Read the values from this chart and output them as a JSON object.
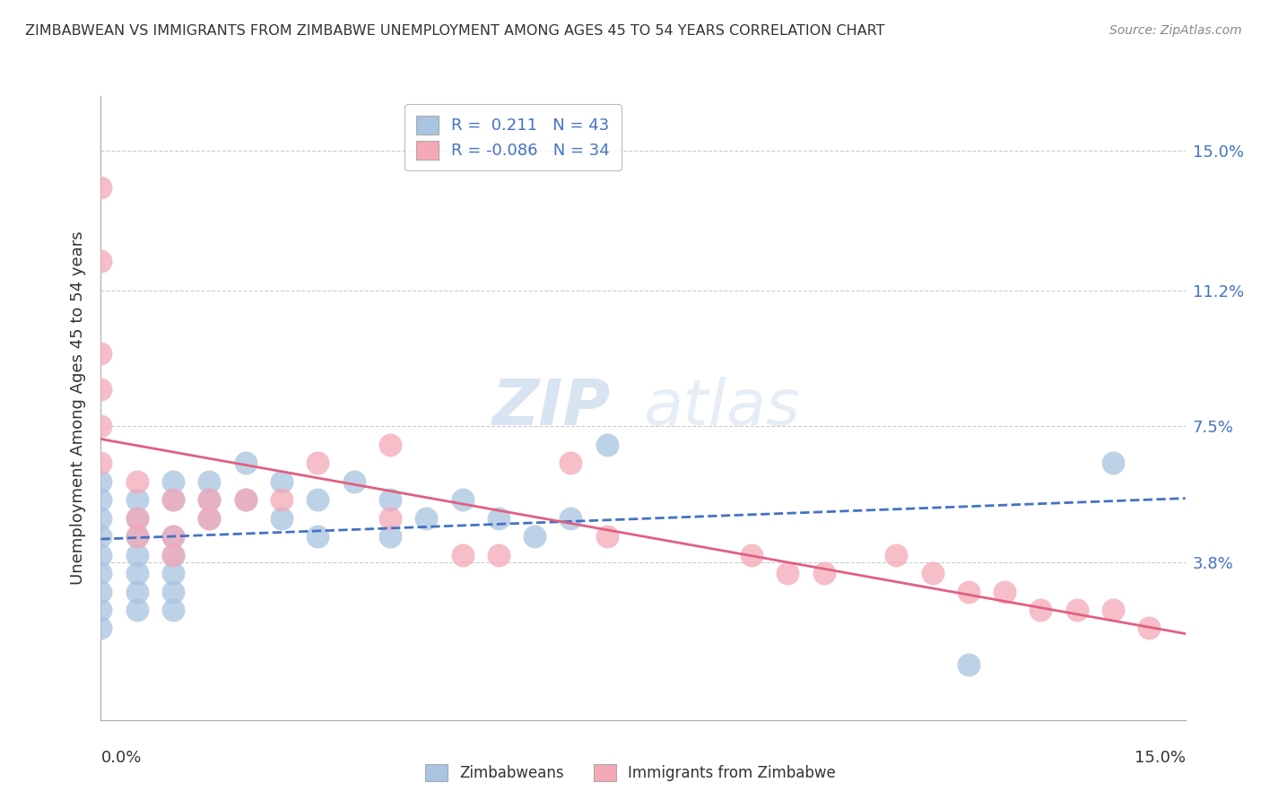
{
  "title": "ZIMBABWEAN VS IMMIGRANTS FROM ZIMBABWE UNEMPLOYMENT AMONG AGES 45 TO 54 YEARS CORRELATION CHART",
  "source": "Source: ZipAtlas.com",
  "ylabel": "Unemployment Among Ages 45 to 54 years",
  "xlim": [
    0,
    0.15
  ],
  "ylim": [
    -0.005,
    0.165
  ],
  "ytick_labels": [
    "3.8%",
    "7.5%",
    "11.2%",
    "15.0%"
  ],
  "ytick_values": [
    0.038,
    0.075,
    0.112,
    0.15
  ],
  "blue_R": 0.211,
  "blue_N": 43,
  "pink_R": -0.086,
  "pink_N": 34,
  "blue_color": "#a8c4e0",
  "pink_color": "#f4a8b8",
  "blue_line_color": "#4472c4",
  "pink_line_color": "#e06080",
  "watermark_text": "ZIP",
  "watermark_text2": "atlas",
  "legend_label_blue": "Zimbabweans",
  "legend_label_pink": "Immigrants from Zimbabwe",
  "blue_scatter_x": [
    0.0,
    0.0,
    0.0,
    0.0,
    0.0,
    0.0,
    0.0,
    0.0,
    0.0,
    0.005,
    0.005,
    0.005,
    0.005,
    0.005,
    0.005,
    0.005,
    0.01,
    0.01,
    0.01,
    0.01,
    0.01,
    0.01,
    0.01,
    0.015,
    0.015,
    0.015,
    0.02,
    0.02,
    0.025,
    0.025,
    0.03,
    0.03,
    0.035,
    0.04,
    0.04,
    0.045,
    0.05,
    0.055,
    0.06,
    0.065,
    0.07,
    0.12,
    0.14
  ],
  "blue_scatter_y": [
    0.04,
    0.045,
    0.05,
    0.055,
    0.06,
    0.035,
    0.03,
    0.025,
    0.02,
    0.055,
    0.05,
    0.045,
    0.04,
    0.035,
    0.03,
    0.025,
    0.06,
    0.055,
    0.045,
    0.04,
    0.035,
    0.03,
    0.025,
    0.06,
    0.055,
    0.05,
    0.065,
    0.055,
    0.06,
    0.05,
    0.055,
    0.045,
    0.06,
    0.055,
    0.045,
    0.05,
    0.055,
    0.05,
    0.045,
    0.05,
    0.07,
    0.01,
    0.065
  ],
  "pink_scatter_x": [
    0.0,
    0.0,
    0.0,
    0.0,
    0.0,
    0.0,
    0.005,
    0.005,
    0.005,
    0.01,
    0.01,
    0.01,
    0.015,
    0.015,
    0.02,
    0.025,
    0.03,
    0.04,
    0.04,
    0.05,
    0.055,
    0.065,
    0.07,
    0.09,
    0.095,
    0.1,
    0.11,
    0.115,
    0.12,
    0.125,
    0.13,
    0.135,
    0.14,
    0.145
  ],
  "pink_scatter_y": [
    0.14,
    0.12,
    0.095,
    0.085,
    0.075,
    0.065,
    0.06,
    0.05,
    0.045,
    0.055,
    0.045,
    0.04,
    0.055,
    0.05,
    0.055,
    0.055,
    0.065,
    0.07,
    0.05,
    0.04,
    0.04,
    0.065,
    0.045,
    0.04,
    0.035,
    0.035,
    0.04,
    0.035,
    0.03,
    0.03,
    0.025,
    0.025,
    0.025,
    0.02
  ]
}
